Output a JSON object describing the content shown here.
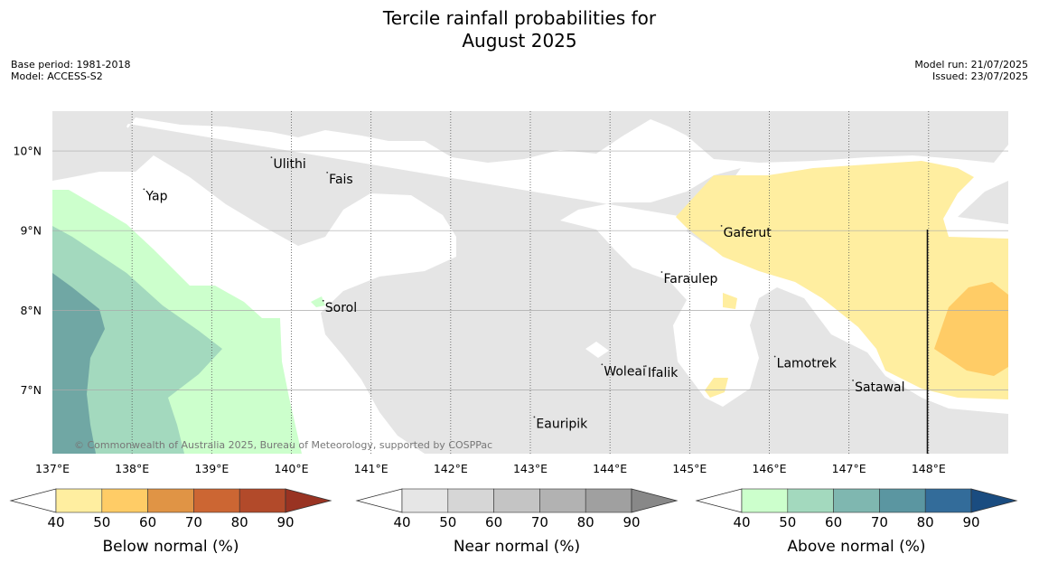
{
  "title_line1": "Tercile rainfall probabilities for",
  "title_line2": "August 2025",
  "base_period": "Base period: 1981-2018",
  "model": "Model: ACCESS-S2",
  "model_run": "Model run: 21/07/2025",
  "issued": "Issued: 23/07/2025",
  "copyright": "© Commonwealth of Australia 2025, Bureau of Meteorology, supported by COSPPac",
  "map": {
    "lon_range": [
      137,
      149
    ],
    "lat_range": [
      6.2,
      10.5
    ],
    "lon_ticks": [
      {
        "value": 137,
        "label": "137°E"
      },
      {
        "value": 138,
        "label": "138°E"
      },
      {
        "value": 139,
        "label": "139°E"
      },
      {
        "value": 140,
        "label": "140°E"
      },
      {
        "value": 141,
        "label": "141°E"
      },
      {
        "value": 142,
        "label": "142°E"
      },
      {
        "value": 143,
        "label": "143°E"
      },
      {
        "value": 144,
        "label": "144°E"
      },
      {
        "value": 145,
        "label": "145°E"
      },
      {
        "value": 146,
        "label": "146°E"
      },
      {
        "value": 147,
        "label": "147°E"
      },
      {
        "value": 148,
        "label": "148°E"
      }
    ],
    "lat_ticks": [
      {
        "value": 10,
        "label": "10°N"
      },
      {
        "value": 9,
        "label": "9°N"
      },
      {
        "value": 8,
        "label": "8°N"
      },
      {
        "value": 7,
        "label": "7°N"
      }
    ],
    "islands": [
      {
        "name": "Ulithi",
        "lon": 139.75,
        "lat": 9.92
      },
      {
        "name": "Fais",
        "lon": 140.45,
        "lat": 9.73
      },
      {
        "name": "Yap",
        "lon": 138.15,
        "lat": 9.52
      },
      {
        "name": "Gaferut",
        "lon": 145.4,
        "lat": 9.06
      },
      {
        "name": "Faraulep",
        "lon": 144.65,
        "lat": 8.48
      },
      {
        "name": "Sorol",
        "lon": 140.4,
        "lat": 8.12
      },
      {
        "name": "Lamotrek",
        "lon": 146.07,
        "lat": 7.42
      },
      {
        "name": "Woleai",
        "lon": 143.9,
        "lat": 7.32
      },
      {
        "name": "Ifalik",
        "lon": 144.45,
        "lat": 7.3
      },
      {
        "name": "Satawal",
        "lon": 147.05,
        "lat": 7.12
      },
      {
        "name": "Eauripik",
        "lon": 143.05,
        "lat": 6.66
      }
    ]
  },
  "legend": [
    {
      "label": "Below normal (%)",
      "ticks": [
        "40",
        "50",
        "60",
        "70",
        "80",
        "90"
      ],
      "colors": [
        "#ffeea0",
        "#ffcc66",
        "#e09445",
        "#cc6633",
        "#b24a2a",
        "#993322"
      ]
    },
    {
      "label": "Near normal (%)",
      "ticks": [
        "40",
        "50",
        "60",
        "70",
        "80",
        "90"
      ],
      "colors": [
        "#e6e6e6",
        "#d6d6d6",
        "#c4c4c4",
        "#b2b2b2",
        "#a0a0a0",
        "#888888"
      ]
    },
    {
      "label": "Above normal (%)",
      "ticks": [
        "40",
        "50",
        "60",
        "70",
        "80",
        "90"
      ],
      "colors": [
        "#ccffcc",
        "#a3d9be",
        "#7fb7b0",
        "#5b96a1",
        "#336c9a",
        "#1a4c80"
      ]
    }
  ]
}
